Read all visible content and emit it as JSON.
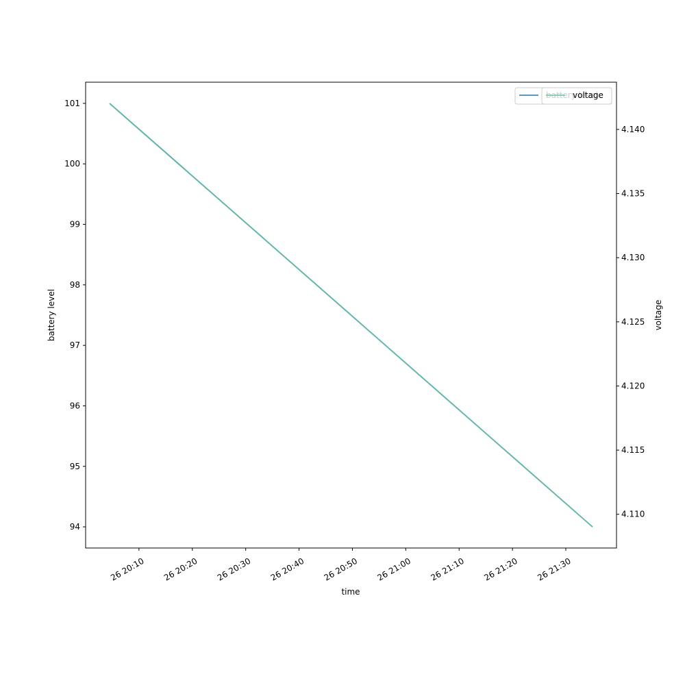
{
  "chart_data": {
    "type": "line",
    "x_label": "time",
    "y_label": "battery level",
    "y2_label": "voltage",
    "x": [
      "26 20:04:30",
      "26 21:35"
    ],
    "series": [
      {
        "name": "battery level",
        "color": "#1f77b4",
        "values": [
          101,
          94
        ]
      },
      {
        "name": "voltage",
        "color": "#66c2a5",
        "values": [
          4.142,
          4.109
        ],
        "axis": "y2"
      }
    ],
    "xlim": [
      "26 20:00",
      "26 21:39:30"
    ],
    "xticks": [
      "26 20:10",
      "26 20:20",
      "26 20:30",
      "26 20:40",
      "26 20:50",
      "26 21:00",
      "26 21:10",
      "26 21:20",
      "26 21:30"
    ],
    "ylim": [
      93.65,
      101.35
    ],
    "yticks": [
      94,
      95,
      96,
      97,
      98,
      99,
      100,
      101
    ],
    "y2lim": [
      4.10737,
      4.14368
    ],
    "y2ticks": [
      {
        "value": 4.11,
        "label": "4.110"
      },
      {
        "value": 4.115,
        "label": "4.115"
      },
      {
        "value": 4.12,
        "label": "4.120"
      },
      {
        "value": 4.125,
        "label": "4.125"
      },
      {
        "value": 4.13,
        "label": "4.130"
      },
      {
        "value": 4.135,
        "label": "4.135"
      },
      {
        "value": 4.14,
        "label": "4.140"
      }
    ],
    "legend": "upper right"
  }
}
